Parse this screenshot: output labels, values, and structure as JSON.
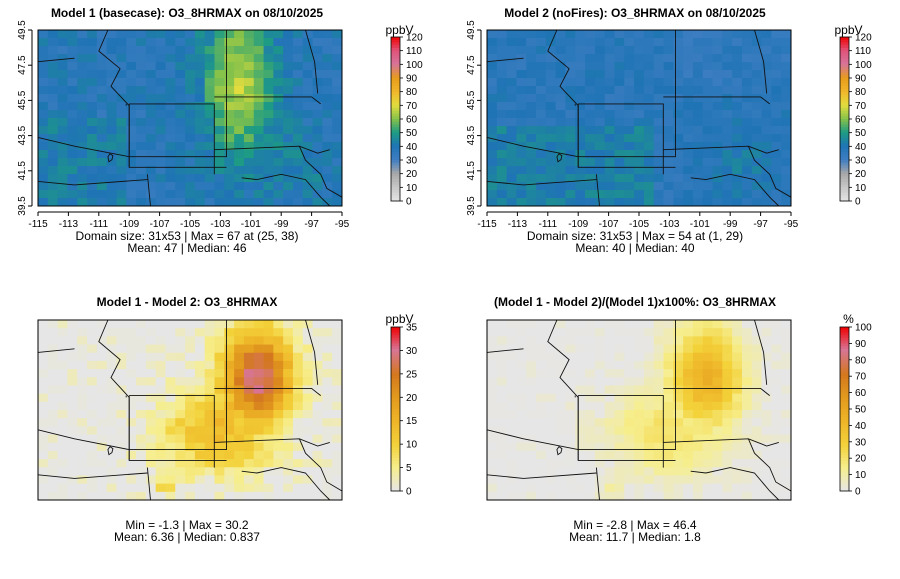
{
  "chart_data": [
    {
      "type": "heatmap",
      "id": "p1",
      "title": "Model 1 (basecase): O3_8HRMAX on 08/10/2025",
      "x_ticks": [
        "-115",
        "-113",
        "-111",
        "-109",
        "-107",
        "-105",
        "-103",
        "-101",
        "-99",
        "-97",
        "-95"
      ],
      "y_ticks": [
        "39.5",
        "41.5",
        "43.5",
        "45.5",
        "47.5",
        "49.5"
      ],
      "legend_unit": "ppbV",
      "legend_ticks": [
        "120",
        "110",
        "100",
        "90",
        "80",
        "70",
        "60",
        "50",
        "40",
        "30",
        "20",
        "10",
        "0"
      ],
      "legend_range": [
        0,
        120
      ],
      "color_scheme": "ozone",
      "caption_lines": [
        "Domain size: 31x53 | Max = 67 at (25, 38)",
        "Mean: 47 |  Median: 46"
      ],
      "field": {
        "kind": "base",
        "base": 38,
        "amp": 28,
        "noise": 5
      }
    },
    {
      "type": "heatmap",
      "id": "p2",
      "title": "Model 2 (noFires): O3_8HRMAX on 08/10/2025",
      "x_ticks": [
        "-115",
        "-113",
        "-111",
        "-109",
        "-107",
        "-105",
        "-103",
        "-101",
        "-99",
        "-97",
        "-95"
      ],
      "y_ticks": [
        "39.5",
        "41.5",
        "43.5",
        "45.5",
        "47.5",
        "49.5"
      ],
      "legend_unit": "ppbV",
      "legend_ticks": [
        "120",
        "110",
        "100",
        "90",
        "80",
        "70",
        "60",
        "50",
        "40",
        "30",
        "20",
        "10",
        "0"
      ],
      "legend_range": [
        0,
        120
      ],
      "color_scheme": "ozone",
      "caption_lines": [
        "Domain size: 31x53 | Max = 54 at (1, 29)",
        "Mean: 40 |  Median: 40"
      ],
      "field": {
        "kind": "nofire",
        "base": 37,
        "amp": 0,
        "noise": 4
      }
    },
    {
      "type": "heatmap",
      "id": "p3",
      "title": "Model 1 - Model 2: O3_8HRMAX",
      "x_ticks": [],
      "y_ticks": [],
      "legend_unit": "ppbV",
      "legend_ticks": [
        "35",
        "30",
        "25",
        "20",
        "15",
        "10",
        "5",
        "0"
      ],
      "legend_range": [
        0,
        35
      ],
      "color_scheme": "diff",
      "caption_lines": [
        "Min = -1.3 | Max = 30.2",
        "Mean: 6.36 |  Median: 0.837"
      ],
      "field": {
        "kind": "diff",
        "base": 0,
        "amp": 30,
        "noise": 2.5
      }
    },
    {
      "type": "heatmap",
      "id": "p4",
      "title": "(Model 1 - Model 2)/(Model 1)x100%: O3_8HRMAX",
      "x_ticks": [],
      "y_ticks": [],
      "legend_unit": "%",
      "legend_ticks": [
        "100",
        "90",
        "80",
        "70",
        "60",
        "50",
        "40",
        "30",
        "20",
        "10",
        "0"
      ],
      "legend_range": [
        0,
        100
      ],
      "color_scheme": "diff",
      "caption_lines": [
        "Min = -2.8 | Max = 46.4",
        "Mean: 11.7 |  Median: 1.8"
      ],
      "field": {
        "kind": "diff",
        "base": 0,
        "amp": 46,
        "noise": 3
      }
    }
  ]
}
